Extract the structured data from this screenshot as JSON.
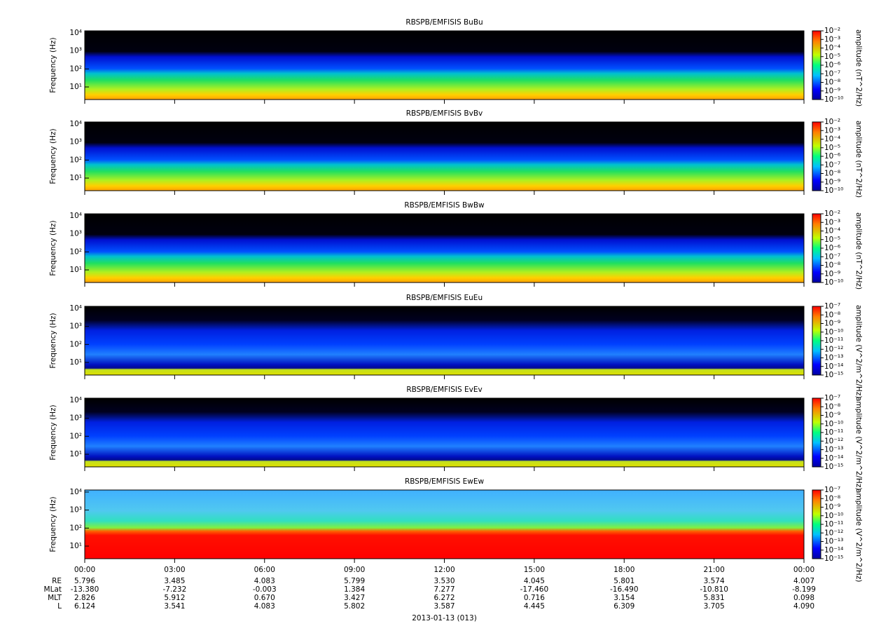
{
  "chart_data": [
    {
      "type": "spectrogram",
      "title": "RBSPB/EMFISIS  BuBu",
      "ylabel": "Frequency (Hz)",
      "yscale": "log",
      "ylim": [
        2,
        13000
      ],
      "yticks": [
        {
          "value": 10,
          "label": "10¹"
        },
        {
          "value": 100,
          "label": "10²"
        },
        {
          "value": 1000,
          "label": "10³"
        },
        {
          "value": 10000,
          "label": "10⁴"
        }
      ],
      "xlim": [
        0,
        24
      ],
      "xticks": [
        0,
        3,
        6,
        9,
        12,
        15,
        18,
        21,
        24
      ],
      "colorbar_label": "amplitude (nT^2/Hz)",
      "clim": [
        1e-10,
        0.01
      ],
      "cticks": [
        {
          "value": 0.01,
          "label": "10⁻²"
        },
        {
          "value": 0.001,
          "label": "10⁻³"
        },
        {
          "value": 0.0001,
          "label": "10⁻⁴"
        },
        {
          "value": 1e-05,
          "label": "10⁻⁵"
        },
        {
          "value": 1e-06,
          "label": "10⁻⁶"
        },
        {
          "value": 1e-07,
          "label": "10⁻⁷"
        },
        {
          "value": 1e-08,
          "label": "10⁻⁸"
        },
        {
          "value": 1e-09,
          "label": "10⁻⁹"
        },
        {
          "value": 1e-10,
          "label": "10⁻¹⁰"
        }
      ]
    },
    {
      "type": "spectrogram",
      "title": "RBSPB/EMFISIS  BvBv",
      "ylabel": "Frequency (Hz)",
      "yscale": "log",
      "ylim": [
        2,
        13000
      ],
      "yticks": [
        {
          "value": 10,
          "label": "10¹"
        },
        {
          "value": 100,
          "label": "10²"
        },
        {
          "value": 1000,
          "label": "10³"
        },
        {
          "value": 10000,
          "label": "10⁴"
        }
      ],
      "xlim": [
        0,
        24
      ],
      "xticks": [
        0,
        3,
        6,
        9,
        12,
        15,
        18,
        21,
        24
      ],
      "colorbar_label": "amplitude (nT^2/Hz)",
      "clim": [
        1e-10,
        0.01
      ],
      "cticks": [
        {
          "value": 0.01,
          "label": "10⁻²"
        },
        {
          "value": 0.001,
          "label": "10⁻³"
        },
        {
          "value": 0.0001,
          "label": "10⁻⁴"
        },
        {
          "value": 1e-05,
          "label": "10⁻⁵"
        },
        {
          "value": 1e-06,
          "label": "10⁻⁶"
        },
        {
          "value": 1e-07,
          "label": "10⁻⁷"
        },
        {
          "value": 1e-08,
          "label": "10⁻⁸"
        },
        {
          "value": 1e-09,
          "label": "10⁻⁹"
        },
        {
          "value": 1e-10,
          "label": "10⁻¹⁰"
        }
      ]
    },
    {
      "type": "spectrogram",
      "title": "RBSPB/EMFISIS  BwBw",
      "ylabel": "Frequency (Hz)",
      "yscale": "log",
      "ylim": [
        2,
        13000
      ],
      "yticks": [
        {
          "value": 10,
          "label": "10¹"
        },
        {
          "value": 100,
          "label": "10²"
        },
        {
          "value": 1000,
          "label": "10³"
        },
        {
          "value": 10000,
          "label": "10⁴"
        }
      ],
      "xlim": [
        0,
        24
      ],
      "xticks": [
        0,
        3,
        6,
        9,
        12,
        15,
        18,
        21,
        24
      ],
      "colorbar_label": "amplitude (nT^2/Hz)",
      "clim": [
        1e-10,
        0.01
      ],
      "cticks": [
        {
          "value": 0.01,
          "label": "10⁻²"
        },
        {
          "value": 0.001,
          "label": "10⁻³"
        },
        {
          "value": 0.0001,
          "label": "10⁻⁴"
        },
        {
          "value": 1e-05,
          "label": "10⁻⁵"
        },
        {
          "value": 1e-06,
          "label": "10⁻⁶"
        },
        {
          "value": 1e-07,
          "label": "10⁻⁷"
        },
        {
          "value": 1e-08,
          "label": "10⁻⁸"
        },
        {
          "value": 1e-09,
          "label": "10⁻⁹"
        },
        {
          "value": 1e-10,
          "label": "10⁻¹⁰"
        }
      ]
    },
    {
      "type": "spectrogram",
      "title": "RBSPB/EMFISIS  EuEu",
      "ylabel": "Frequency (Hz)",
      "yscale": "log",
      "ylim": [
        2,
        13000
      ],
      "yticks": [
        {
          "value": 10,
          "label": "10¹"
        },
        {
          "value": 100,
          "label": "10²"
        },
        {
          "value": 1000,
          "label": "10³"
        },
        {
          "value": 10000,
          "label": "10⁴"
        }
      ],
      "xlim": [
        0,
        24
      ],
      "xticks": [
        0,
        3,
        6,
        9,
        12,
        15,
        18,
        21,
        24
      ],
      "colorbar_label": "amplitude (V^2/m^2/Hz)",
      "clim": [
        1e-15,
        1e-07
      ],
      "cticks": [
        {
          "value": 1e-07,
          "label": "10⁻⁷"
        },
        {
          "value": 1e-08,
          "label": "10⁻⁸"
        },
        {
          "value": 1e-09,
          "label": "10⁻⁹"
        },
        {
          "value": 1e-10,
          "label": "10⁻¹⁰"
        },
        {
          "value": 1e-11,
          "label": "10⁻¹¹"
        },
        {
          "value": 1e-12,
          "label": "10⁻¹²"
        },
        {
          "value": 1e-13,
          "label": "10⁻¹³"
        },
        {
          "value": 1e-14,
          "label": "10⁻¹⁴"
        },
        {
          "value": 1e-15,
          "label": "10⁻¹⁵"
        }
      ]
    },
    {
      "type": "spectrogram",
      "title": "RBSPB/EMFISIS  EvEv",
      "ylabel": "Frequency (Hz)",
      "yscale": "log",
      "ylim": [
        2,
        13000
      ],
      "yticks": [
        {
          "value": 10,
          "label": "10¹"
        },
        {
          "value": 100,
          "label": "10²"
        },
        {
          "value": 1000,
          "label": "10³"
        },
        {
          "value": 10000,
          "label": "10⁴"
        }
      ],
      "xlim": [
        0,
        24
      ],
      "xticks": [
        0,
        3,
        6,
        9,
        12,
        15,
        18,
        21,
        24
      ],
      "colorbar_label": "amplitude (V^2/m^2/Hz)",
      "clim": [
        1e-15,
        1e-07
      ],
      "cticks": [
        {
          "value": 1e-07,
          "label": "10⁻⁷"
        },
        {
          "value": 1e-08,
          "label": "10⁻⁸"
        },
        {
          "value": 1e-09,
          "label": "10⁻⁹"
        },
        {
          "value": 1e-10,
          "label": "10⁻¹⁰"
        },
        {
          "value": 1e-11,
          "label": "10⁻¹¹"
        },
        {
          "value": 1e-12,
          "label": "10⁻¹²"
        },
        {
          "value": 1e-13,
          "label": "10⁻¹³"
        },
        {
          "value": 1e-14,
          "label": "10⁻¹⁴"
        },
        {
          "value": 1e-15,
          "label": "10⁻¹⁵"
        }
      ]
    },
    {
      "type": "spectrogram",
      "title": "RBSPB/EMFISIS  EwEw",
      "ylabel": "Frequency (Hz)",
      "yscale": "log",
      "ylim": [
        2,
        13000
      ],
      "yticks": [
        {
          "value": 10,
          "label": "10¹"
        },
        {
          "value": 100,
          "label": "10²"
        },
        {
          "value": 1000,
          "label": "10³"
        },
        {
          "value": 10000,
          "label": "10⁴"
        }
      ],
      "xlim": [
        0,
        24
      ],
      "xticks": [
        {
          "value": 0,
          "label": "00:00"
        },
        {
          "value": 3,
          "label": "03:00"
        },
        {
          "value": 6,
          "label": "06:00"
        },
        {
          "value": 9,
          "label": "09:00"
        },
        {
          "value": 12,
          "label": "12:00"
        },
        {
          "value": 15,
          "label": "15:00"
        },
        {
          "value": 18,
          "label": "18:00"
        },
        {
          "value": 21,
          "label": "21:00"
        },
        {
          "value": 24,
          "label": "00:00"
        }
      ],
      "xlabel": "2013-01-13 (013)",
      "colorbar_label": "amplitude (V^2/m^2/Hz)",
      "clim": [
        1e-15,
        1e-07
      ],
      "cticks": [
        {
          "value": 1e-07,
          "label": "10⁻⁷"
        },
        {
          "value": 1e-08,
          "label": "10⁻⁸"
        },
        {
          "value": 1e-09,
          "label": "10⁻⁹"
        },
        {
          "value": 1e-10,
          "label": "10⁻¹⁰"
        },
        {
          "value": 1e-11,
          "label": "10⁻¹¹"
        },
        {
          "value": 1e-12,
          "label": "10⁻¹²"
        },
        {
          "value": 1e-13,
          "label": "10⁻¹³"
        },
        {
          "value": 1e-14,
          "label": "10⁻¹⁴"
        },
        {
          "value": 1e-15,
          "label": "10⁻¹⁵"
        }
      ],
      "ephemeris": [
        {
          "label": "RE",
          "values": [
            5.796,
            3.485,
            4.083,
            5.799,
            3.53,
            4.045,
            5.801,
            3.574,
            4.007
          ],
          "value_labels": [
            "5.796",
            "3.485",
            "4.083",
            "5.799",
            "3.530",
            "4.045",
            "5.801",
            "3.574",
            "4.007"
          ]
        },
        {
          "label": "MLat",
          "values": [
            -13.38,
            -7.232,
            -0.003,
            1.384,
            7.277,
            -17.46,
            -16.49,
            -10.81,
            -8.199
          ],
          "value_labels": [
            "-13.380",
            "-7.232",
            "-0.003",
            "1.384",
            "7.277",
            "-17.460",
            "-16.490",
            "-10.810",
            "-8.199"
          ]
        },
        {
          "label": "MLT",
          "values": [
            2.826,
            5.912,
            0.67,
            3.427,
            6.272,
            0.716,
            3.154,
            5.831,
            0.098
          ],
          "value_labels": [
            "2.826",
            "5.912",
            "0.670",
            "3.427",
            "6.272",
            "0.716",
            "3.154",
            "5.831",
            "0.098"
          ]
        },
        {
          "label": "L",
          "values": [
            6.124,
            3.541,
            4.083,
            5.802,
            3.587,
            4.445,
            6.309,
            3.705,
            4.09
          ],
          "value_labels": [
            "6.124",
            "3.541",
            "4.083",
            "5.802",
            "3.587",
            "4.445",
            "6.309",
            "3.705",
            "4.090"
          ]
        }
      ]
    }
  ]
}
